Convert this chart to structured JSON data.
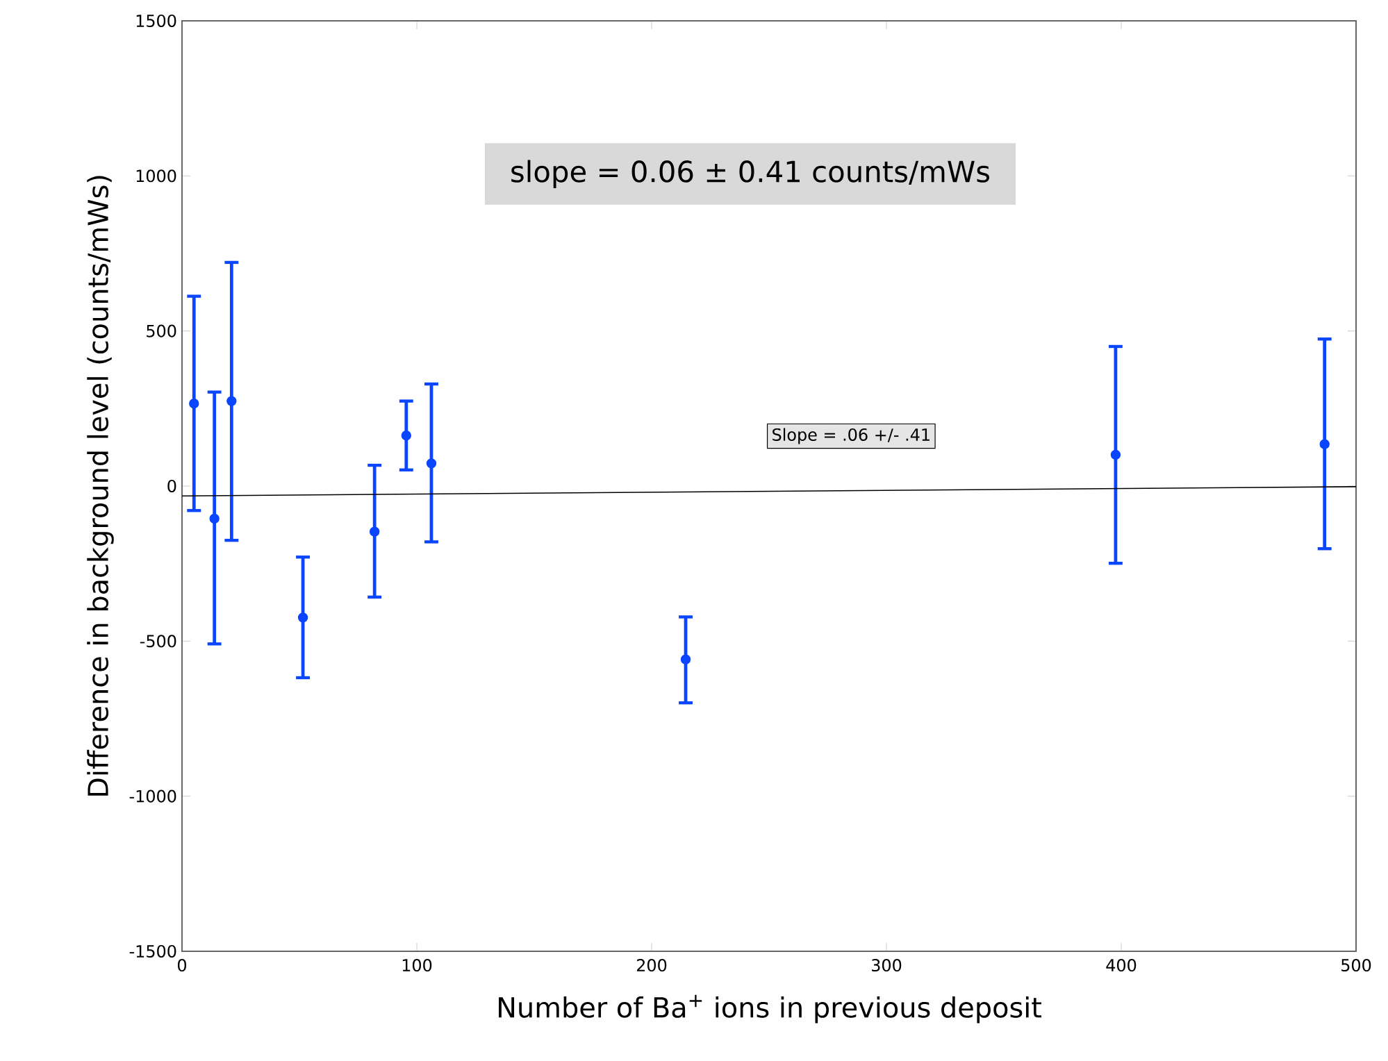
{
  "chart_data": {
    "type": "scatter",
    "xlabel": "Number of Ba$^{+}$ ions in previous deposit",
    "ylabel": "Difference in background level (counts/mWs)",
    "annotations": [
      "slope = 0.06 ± 0.41 counts/mWs",
      "Slope = .06 +/- .41"
    ],
    "xlim": [
      0,
      500
    ],
    "xticks": [
      0,
      100,
      200,
      300,
      400,
      500
    ],
    "ylim": [
      -1500,
      1500
    ],
    "yticks": [
      -1500,
      -1000,
      -500,
      0,
      500,
      1000,
      1500
    ],
    "series": [
      {
        "color": "#0a45ff",
        "marker": "circle",
        "x": [
          5.1,
          13.8,
          21.1,
          51.5,
          82,
          95.5,
          106.2,
          214.5,
          397.6,
          486.6
        ],
        "values": [
          266,
          -105,
          274,
          -424,
          -147,
          163,
          73,
          -559,
          101,
          135
        ],
        "errors": [
          [
            -79,
            612
          ],
          [
            -509,
            303
          ],
          [
            -175,
            721
          ],
          [
            -618,
            -229
          ],
          [
            -358,
            67
          ],
          [
            52,
            274
          ],
          [
            -180,
            329
          ],
          [
            -699,
            -422
          ],
          [
            -249,
            450
          ],
          [
            -202,
            474
          ]
        ]
      },
      {
        "type": "line",
        "color": "#000000",
        "marker": "none",
        "x": [
          0,
          500
        ],
        "values": [
          -32,
          -2
        ]
      }
    ]
  }
}
